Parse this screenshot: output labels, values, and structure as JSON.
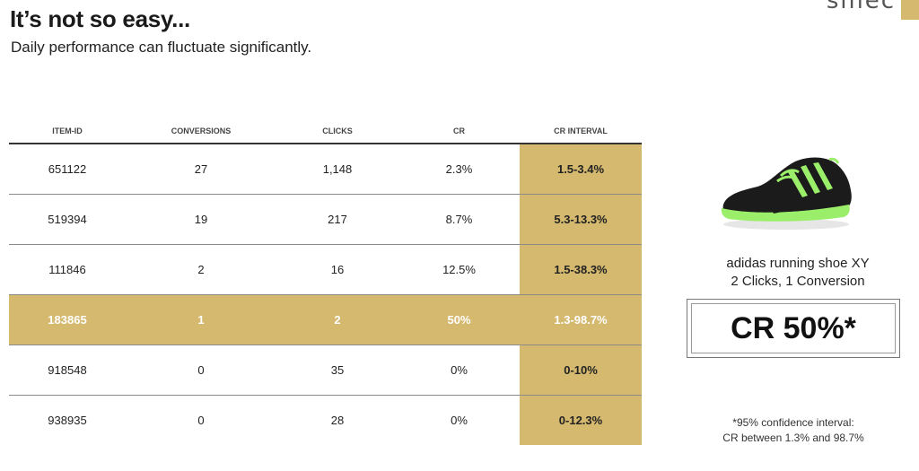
{
  "header": {
    "title": "It’s not so easy...",
    "subtitle": "Daily performance can fluctuate significantly.",
    "logo_text": "smec"
  },
  "table": {
    "columns": [
      "ITEM-ID",
      "CONVERSIONS",
      "CLICKS",
      "CR",
      "CR INTERVAL"
    ],
    "rows": [
      {
        "item_id": "651122",
        "conversions": "27",
        "clicks": "1,148",
        "cr": "2.3%",
        "cr_interval": "1.5-3.4%"
      },
      {
        "item_id": "519394",
        "conversions": "19",
        "clicks": "217",
        "cr": "8.7%",
        "cr_interval": "5.3-13.3%"
      },
      {
        "item_id": "111846",
        "conversions": "2",
        "clicks": "16",
        "cr": "12.5%",
        "cr_interval": "1.5-38.3%"
      },
      {
        "item_id": "183865",
        "conversions": "1",
        "clicks": "2",
        "cr": "50%",
        "cr_interval": "1.3-98.7%"
      },
      {
        "item_id": "918548",
        "conversions": "0",
        "clicks": "35",
        "cr": "0%",
        "cr_interval": "0-10%"
      },
      {
        "item_id": "938935",
        "conversions": "0",
        "clicks": "28",
        "cr": "0%",
        "cr_interval": "0-12.3%"
      }
    ]
  },
  "product": {
    "name": "adidas running shoe XY",
    "stats": "2 Clicks, 1 Conversion",
    "cr_value": "CR 50%*",
    "image_icon": "running-shoe-image"
  },
  "footnote": {
    "line1": "*95% confidence interval:",
    "line2": "CR between 1.3% and 98.7%"
  },
  "colors": {
    "accent_gold": "#d4b96f",
    "shoe_green": "#9bee6a",
    "text_dark": "#1a1a1a"
  }
}
